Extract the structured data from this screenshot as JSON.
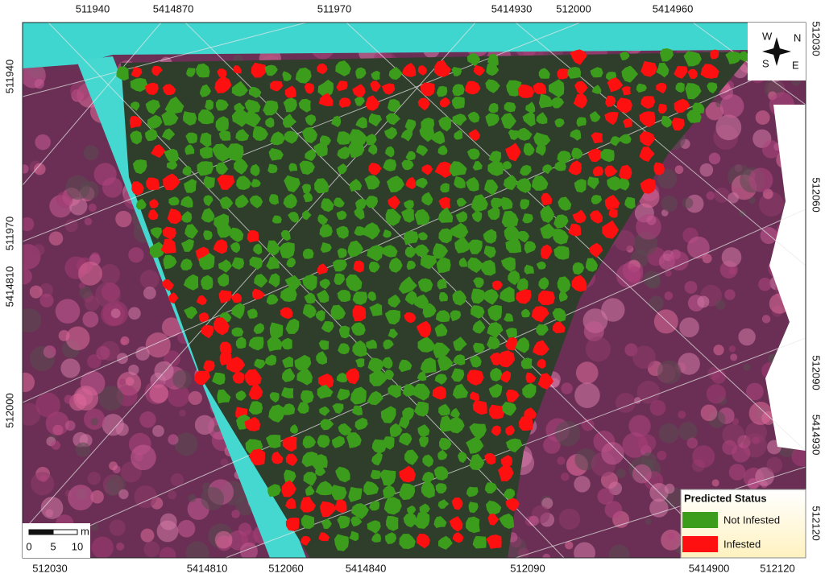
{
  "map": {
    "top_labels": [
      "511940",
      "5414870",
      "511970",
      "5414930",
      "512000",
      "5414960"
    ],
    "bottom_labels": [
      "512030",
      "5414810",
      "512060",
      "5414840",
      "512090",
      "5414900",
      "512120"
    ],
    "left_labels": [
      "511940",
      "511970",
      "5414810",
      "512000"
    ],
    "right_labels": [
      "512030",
      "512060",
      "512090",
      "5414930",
      "512120"
    ],
    "legend": {
      "title": "Predicted Status",
      "items": [
        {
          "label": "Not Infested",
          "color": "#3c9c1c"
        },
        {
          "label": "Infested",
          "color": "#ff1010"
        }
      ]
    },
    "scale_bar": {
      "labels": [
        "0",
        "5",
        "10"
      ],
      "unit": "m"
    },
    "compass": {
      "N": "N",
      "E": "E",
      "S": "S",
      "W": "W"
    }
  }
}
